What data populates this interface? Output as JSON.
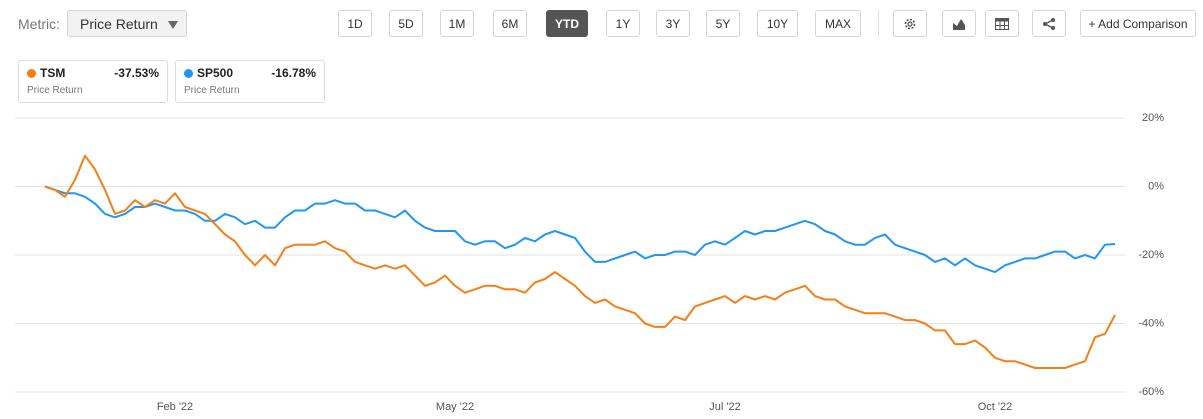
{
  "toolbar": {
    "metric_label": "Metric:",
    "metric_value": "Price Return",
    "ranges": [
      "1D",
      "5D",
      "1M",
      "6M",
      "YTD",
      "1Y",
      "3Y",
      "5Y",
      "10Y",
      "MAX"
    ],
    "active_range": "YTD",
    "add_comparison": "+ Add Comparison"
  },
  "chart_data": {
    "type": "line",
    "categories": [
      null,
      null,
      null,
      null,
      null,
      null,
      null,
      null,
      null,
      null,
      null,
      null,
      null,
      "Feb '22",
      null,
      null,
      null,
      null,
      null,
      null,
      null,
      null,
      null,
      null,
      null,
      null,
      null,
      null,
      null,
      null,
      null,
      null,
      null,
      null,
      null,
      null,
      null,
      null,
      null,
      null,
      null,
      "May '22",
      null,
      null,
      null,
      null,
      null,
      null,
      null,
      null,
      null,
      null,
      null,
      null,
      null,
      null,
      null,
      null,
      null,
      null,
      null,
      null,
      null,
      null,
      null,
      null,
      null,
      null,
      "Jul '22",
      null,
      null,
      null,
      null,
      null,
      null,
      null,
      null,
      null,
      null,
      null,
      null,
      null,
      null,
      null,
      null,
      null,
      null,
      null,
      null,
      null,
      null,
      null,
      null,
      null,
      null,
      "Oct '22",
      null,
      null,
      null,
      null,
      null,
      null,
      null,
      null,
      null,
      null,
      null,
      null
    ],
    "series": [
      {
        "name": "TSM",
        "color": "#f57f17",
        "change": "-37.53%",
        "metric": "Price Return",
        "values": [
          0,
          -1,
          -3,
          2,
          9,
          5,
          -1,
          -8,
          -7,
          -4,
          -6,
          -4,
          -5,
          -2,
          -6,
          -7,
          -8,
          -11,
          -14,
          -16,
          -20,
          -23,
          -20,
          -23,
          -18,
          -17,
          -17,
          -17,
          -16,
          -18,
          -19,
          -22,
          -23,
          -24,
          -23,
          -24,
          -23,
          -26,
          -29,
          -28,
          -26,
          -29,
          -31,
          -30,
          -29,
          -29,
          -30,
          -30,
          -31,
          -28,
          -27,
          -25,
          -27,
          -29,
          -32,
          -34,
          -33,
          -35,
          -36,
          -37,
          -40,
          -41,
          -41,
          -38,
          -39,
          -35,
          -34,
          -33,
          -32,
          -34,
          -32,
          -33,
          -32,
          -33,
          -31,
          -30,
          -29,
          -32,
          -33,
          -33,
          -35,
          -36,
          -37,
          -37,
          -37,
          -38,
          -39,
          -39,
          -40,
          -42,
          -42,
          -46,
          -46,
          -45,
          -47,
          -50,
          -51,
          -51,
          -52,
          -53,
          -53,
          -53,
          -53,
          -52,
          -51,
          -44,
          -43,
          -37.53
        ]
      },
      {
        "name": "SP500",
        "color": "#2196f3",
        "change": "-16.78%",
        "metric": "Price Return",
        "values": [
          0,
          -1,
          -2,
          -2,
          -3,
          -5,
          -8,
          -9,
          -8,
          -6,
          -6,
          -5,
          -6,
          -7,
          -7,
          -8,
          -10,
          -10,
          -8,
          -9,
          -11,
          -10,
          -12,
          -12,
          -9,
          -7,
          -7,
          -5,
          -5,
          -4,
          -5,
          -5,
          -7,
          -7,
          -8,
          -9,
          -7,
          -10,
          -12,
          -13,
          -13,
          -13,
          -16,
          -17,
          -16,
          -16,
          -18,
          -17,
          -15,
          -16,
          -14,
          -13,
          -14,
          -15,
          -19,
          -22,
          -22,
          -21,
          -20,
          -19,
          -21,
          -20,
          -20,
          -19,
          -19,
          -20,
          -17,
          -16,
          -17,
          -15,
          -13,
          -14,
          -13,
          -13,
          -12,
          -11,
          -10,
          -11,
          -13,
          -14,
          -16,
          -17,
          -17,
          -15,
          -14,
          -17,
          -18,
          -19,
          -20,
          -22,
          -21,
          -23,
          -21,
          -23,
          -24,
          -25,
          -23,
          -22,
          -21,
          -21,
          -20,
          -19,
          -19,
          -21,
          -20,
          -21,
          -17,
          -16.78
        ]
      }
    ],
    "ylim": [
      -60,
      20
    ],
    "yticks": [
      {
        "value": 20,
        "label": "20%"
      },
      {
        "value": 0,
        "label": "0%"
      },
      {
        "value": -20,
        "label": "-20%"
      },
      {
        "value": -40,
        "label": "-40%"
      },
      {
        "value": -60,
        "label": "-60%"
      }
    ],
    "grid": true
  }
}
